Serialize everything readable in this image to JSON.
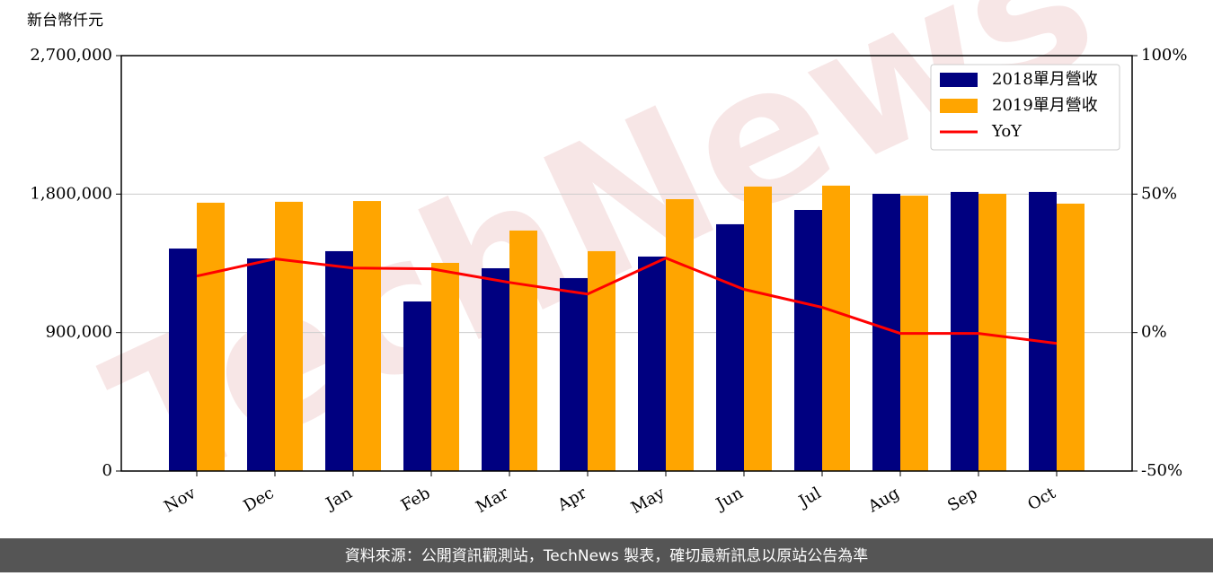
{
  "chart_data": {
    "type": "bar",
    "y_label": "新台幣仟元",
    "watermark": "TechNews",
    "categories": [
      "Nov",
      "Dec",
      "Jan",
      "Feb",
      "Mar",
      "Apr",
      "May",
      "Jun",
      "Jul",
      "Aug",
      "Sep",
      "Oct"
    ],
    "series": [
      {
        "name": "2018單月營收",
        "color": "#000080",
        "values": [
          1446000,
          1382000,
          1429000,
          1102000,
          1318000,
          1254000,
          1394000,
          1604000,
          1697000,
          1802000,
          1814000,
          1814000
        ]
      },
      {
        "name": "2019單月營收",
        "color": "#ffa500",
        "values": [
          1744000,
          1750000,
          1755000,
          1353000,
          1563000,
          1429000,
          1767000,
          1849000,
          1855000,
          1790000,
          1802000,
          1738000
        ]
      },
      {
        "name": "YoY",
        "type": "line",
        "axis": "y2",
        "color": "#ff0000",
        "values": [
          20.4,
          26.6,
          23.3,
          23.0,
          18.1,
          13.9,
          26.9,
          15.6,
          9.1,
          -0.3,
          -0.3,
          -3.9
        ]
      }
    ],
    "ylim": [
      0,
      2700000
    ],
    "yticks": [
      0,
      {
        "value": 900000,
        "label": "900,000"
      },
      {
        "value": 1800000,
        "label": "1,800,000"
      },
      {
        "value": 2700000,
        "label": "2,700,000"
      }
    ],
    "y2lim": [
      -50,
      100
    ],
    "y2ticks": [
      {
        "value": -50,
        "label": "-50%"
      },
      {
        "value": 0,
        "label": "0%"
      },
      {
        "value": 50,
        "label": "50%"
      },
      {
        "value": 100,
        "label": "100%"
      }
    ],
    "grid": true,
    "legend": "upper right",
    "footer": "資料來源：公開資訊觀測站，TechNews 製表，確切最新訊息以原站公告為準"
  }
}
